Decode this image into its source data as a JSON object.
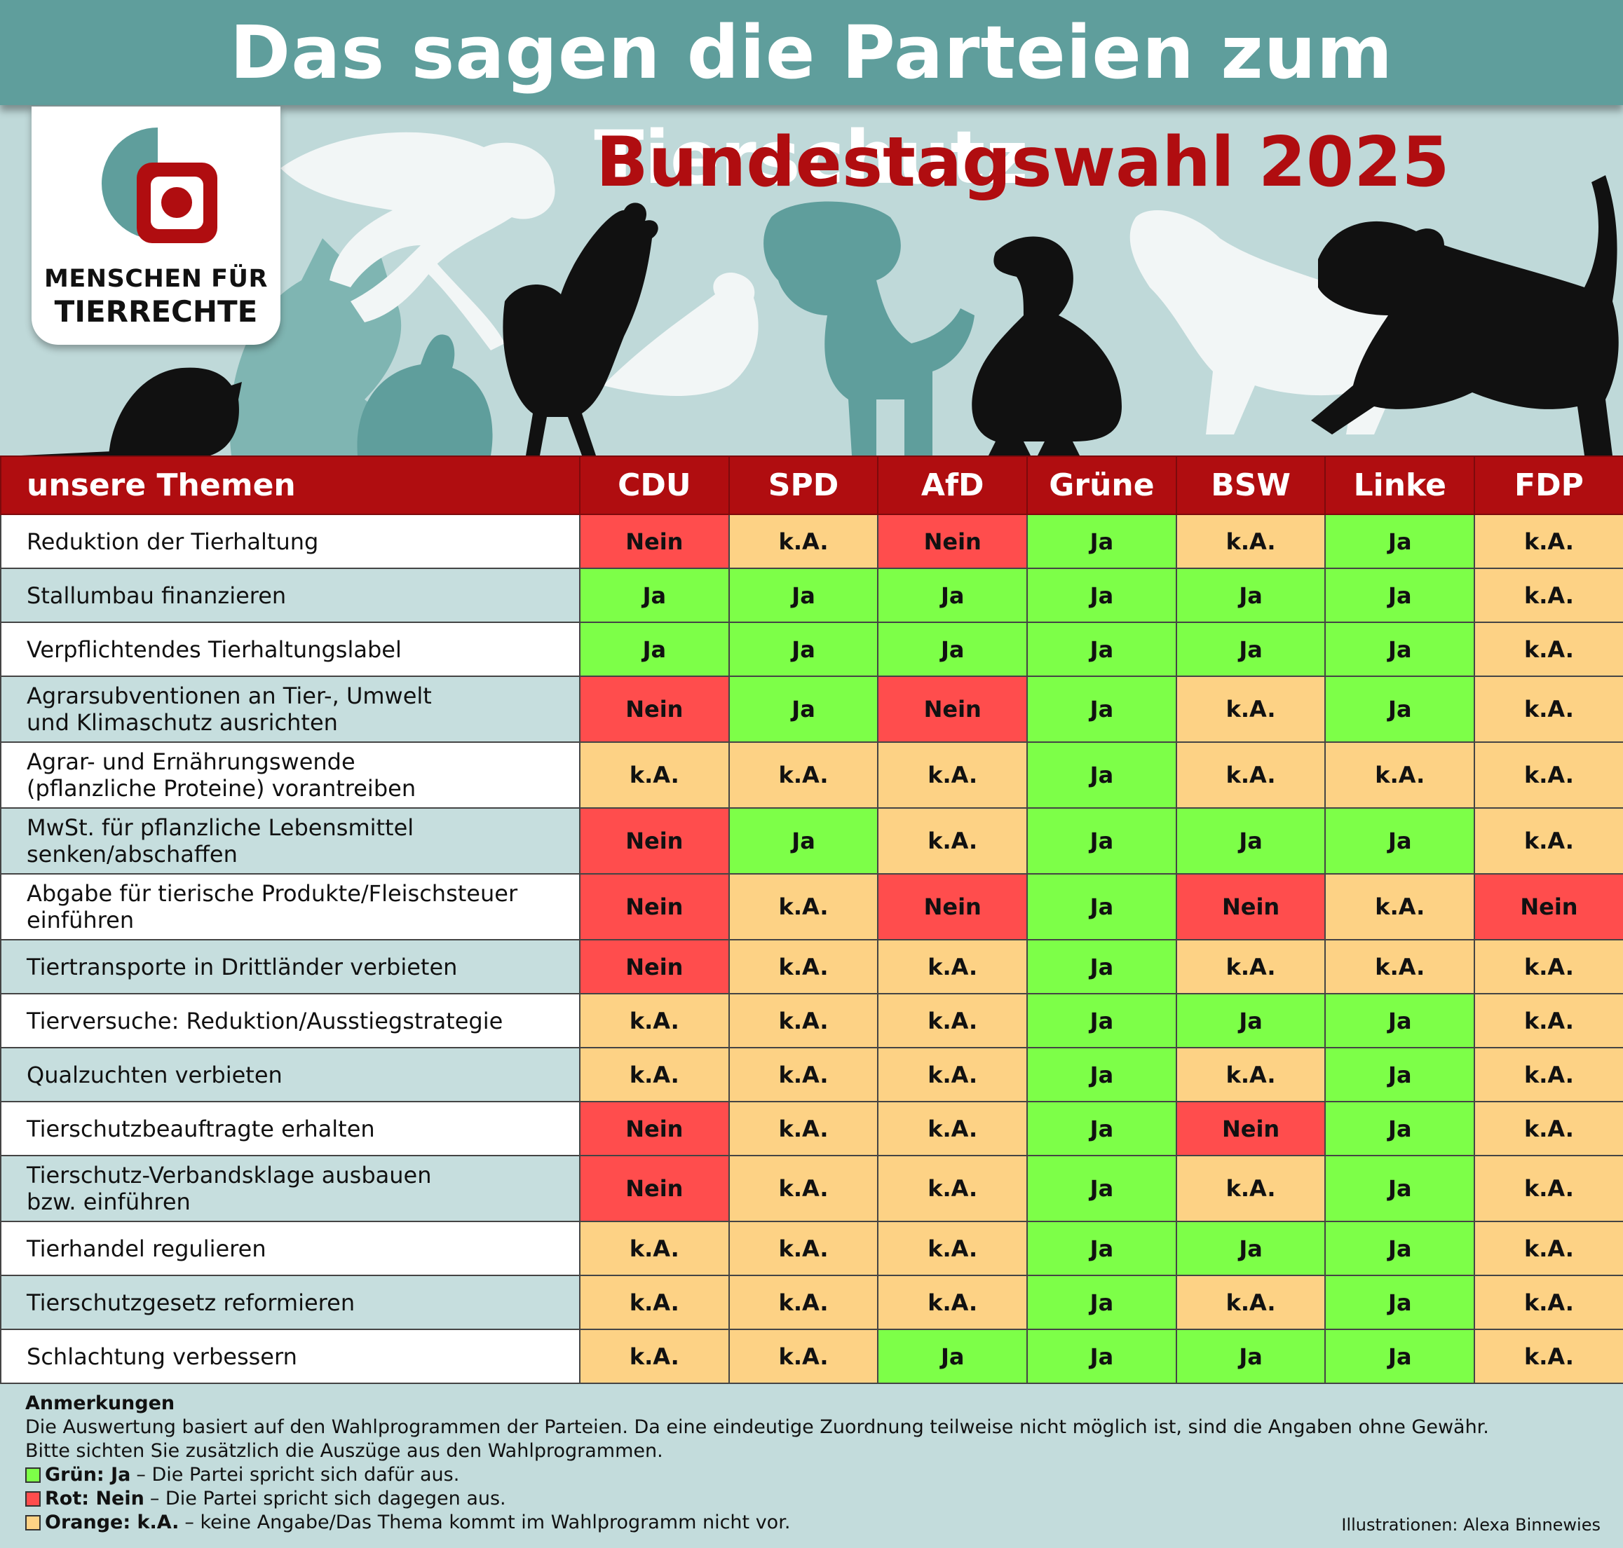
{
  "title": "Das sagen die Parteien zum Tierschutz",
  "subtitle": "Bundestagswahl 2025",
  "logo": {
    "line1": "MENSCHEN FÜR",
    "line2": "TIERRECHTE"
  },
  "colors": {
    "ja": "#7dff48",
    "nein": "#ff4d4d",
    "ka": "#fdd285",
    "header_red": "#b00d10",
    "teal": "#5f9e9c"
  },
  "table": {
    "topic_header": "unsere Themen",
    "parties": [
      "CDU",
      "SPD",
      "AfD",
      "Grüne",
      "BSW",
      "Linke",
      "FDP"
    ],
    "rows": [
      {
        "line1": "Reduktion der Tierhaltung",
        "line2": "",
        "values": [
          "Nein",
          "k.A.",
          "Nein",
          "Ja",
          "k.A.",
          "Ja",
          "k.A."
        ]
      },
      {
        "line1": "Stallumbau finanzieren",
        "line2": "",
        "values": [
          "Ja",
          "Ja",
          "Ja",
          "Ja",
          "Ja",
          "Ja",
          "k.A."
        ]
      },
      {
        "line1": "Verpflichtendes Tierhaltungslabel",
        "line2": "",
        "values": [
          "Ja",
          "Ja",
          "Ja",
          "Ja",
          "Ja",
          "Ja",
          "k.A."
        ]
      },
      {
        "line1": "Agrarsubventionen an Tier-, Umwelt",
        "line2": "und Klimaschutz ausrichten",
        "values": [
          "Nein",
          "Ja",
          "Nein",
          "Ja",
          "k.A.",
          "Ja",
          "k.A."
        ]
      },
      {
        "line1": "Agrar- und Ernährungswende",
        "line2": "(pflanzliche Proteine) vorantreiben",
        "values": [
          "k.A.",
          "k.A.",
          "k.A.",
          "Ja",
          "k.A.",
          "k.A.",
          "k.A."
        ]
      },
      {
        "line1": "MwSt. für pflanzliche Lebensmittel",
        "line2": "senken/abschaffen",
        "values": [
          "Nein",
          "Ja",
          "k.A.",
          "Ja",
          "Ja",
          "Ja",
          "k.A."
        ]
      },
      {
        "line1": "Abgabe für tierische Produkte/Fleischsteuer",
        "line2": "einführen",
        "values": [
          "Nein",
          "k.A.",
          "Nein",
          "Ja",
          "Nein",
          "k.A.",
          "Nein"
        ]
      },
      {
        "line1": "Tiertransporte in Drittländer verbieten",
        "line2": "",
        "values": [
          "Nein",
          "k.A.",
          "k.A.",
          "Ja",
          "k.A.",
          "k.A.",
          "k.A."
        ]
      },
      {
        "line1": "Tierversuche: Reduktion/Ausstiegstrategie",
        "line2": "",
        "values": [
          "k.A.",
          "k.A.",
          "k.A.",
          "Ja",
          "Ja",
          "Ja",
          "k.A."
        ]
      },
      {
        "line1": "Qualzuchten verbieten",
        "line2": "",
        "values": [
          "k.A.",
          "k.A.",
          "k.A.",
          "Ja",
          "k.A.",
          "Ja",
          "k.A."
        ]
      },
      {
        "line1": "Tierschutzbeauftragte erhalten",
        "line2": "",
        "values": [
          "Nein",
          "k.A.",
          "k.A.",
          "Ja",
          "Nein",
          "Ja",
          "k.A."
        ]
      },
      {
        "line1": "Tierschutz-Verbandsklage ausbauen",
        "line2": "bzw. einführen",
        "values": [
          "Nein",
          "k.A.",
          "k.A.",
          "Ja",
          "k.A.",
          "Ja",
          "k.A."
        ]
      },
      {
        "line1": "Tierhandel regulieren",
        "line2": "",
        "values": [
          "k.A.",
          "k.A.",
          "k.A.",
          "Ja",
          "Ja",
          "Ja",
          "k.A."
        ]
      },
      {
        "line1": "Tierschutzgesetz reformieren",
        "line2": "",
        "values": [
          "k.A.",
          "k.A.",
          "k.A.",
          "Ja",
          "k.A.",
          "Ja",
          "k.A."
        ]
      },
      {
        "line1": "Schlachtung verbessern",
        "line2": "",
        "values": [
          "k.A.",
          "k.A.",
          "Ja",
          "Ja",
          "Ja",
          "Ja",
          "k.A."
        ]
      }
    ]
  },
  "notes": {
    "title": "Anmerkungen",
    "line1": "Die Auswertung basiert auf den Wahlprogrammen der Parteien. Da eine eindeutige Zuordnung teilweise nicht möglich ist, sind die Angaben ohne Gewähr.",
    "line2": "Bitte sichten Sie zusätzlich die Auszüge aus den Wahlprogrammen.",
    "legend": [
      {
        "key": "Grün: Ja",
        "text": "– Die Partei spricht sich dafür aus.",
        "color": "#7dff48"
      },
      {
        "key": "Rot: Nein",
        "text": "– Die Partei spricht sich dagegen aus.",
        "color": "#ff4d4d"
      },
      {
        "key": "Orange: k.A.",
        "text": "– keine Angabe/Das Thema kommt im Wahlprogramm nicht vor.",
        "color": "#fdd285"
      }
    ]
  },
  "credit": "Illustrationen: Alexa Binnewies"
}
